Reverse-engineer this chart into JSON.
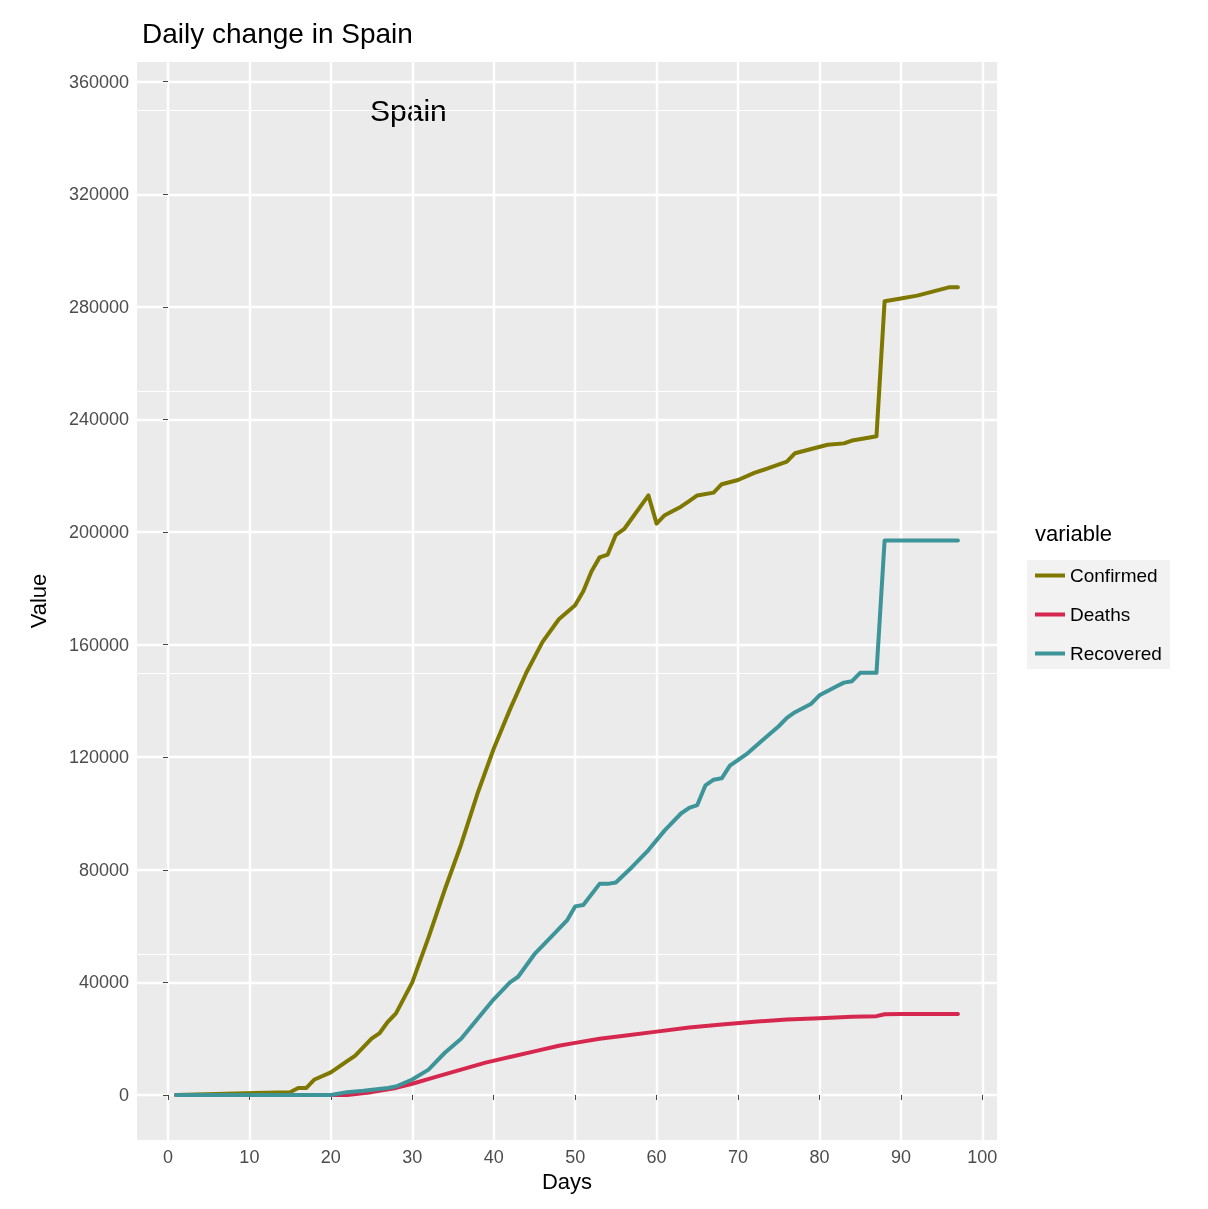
{
  "chart_data": {
    "type": "line",
    "title": "Daily change in Spain",
    "xlabel": "Days",
    "ylabel": "Value",
    "legend_title": "variable",
    "annotations": [
      "Spain"
    ],
    "xlim": [
      -3.8,
      101.8
    ],
    "xticks": [
      0,
      10,
      20,
      30,
      40,
      50,
      60,
      70,
      80,
      90,
      100
    ],
    "ylim": [
      -16000,
      367000
    ],
    "yticks": [
      0,
      40000,
      80000,
      120000,
      160000,
      200000,
      240000,
      280000,
      320000,
      360000
    ],
    "grid": true,
    "legend": "right",
    "marker": "none",
    "line_style": "solid",
    "series": [
      {
        "name": "Confirmed",
        "color": "#7f7800",
        "x": [
          1,
          15,
          16,
          17,
          18,
          20,
          22,
          23,
          25,
          26,
          27,
          28,
          30,
          32,
          34,
          36,
          38,
          40,
          42,
          44,
          46,
          48,
          50,
          51,
          52,
          53,
          54,
          55,
          56,
          57,
          59,
          60,
          61,
          63,
          64,
          65,
          67,
          68,
          70,
          72,
          74,
          76,
          77,
          79,
          81,
          83,
          84,
          86,
          87,
          88,
          90,
          92,
          94,
          96,
          97
        ],
        "values": [
          0,
          1000,
          2500,
          2500,
          5500,
          8000,
          12000,
          14000,
          20000,
          22000,
          26000,
          29000,
          40000,
          56000,
          73000,
          89000,
          107000,
          123000,
          137000,
          150000,
          161000,
          169000,
          174000,
          179000,
          186000,
          191000,
          192000,
          199000,
          201000,
          205000,
          213000,
          203000,
          206000,
          209000,
          211000,
          213000,
          214000,
          217000,
          218500,
          221000,
          223000,
          225000,
          228000,
          229500,
          231000,
          231500,
          232500,
          233500,
          234000,
          282000,
          283000,
          284000,
          285500,
          287000,
          287000
        ]
      },
      {
        "name": "Deaths",
        "color": "#d6284f",
        "x": [
          1,
          22,
          25,
          28,
          30,
          33,
          36,
          39,
          42,
          45,
          48,
          50,
          53,
          56,
          60,
          64,
          68,
          72,
          76,
          80,
          84,
          87,
          88,
          90,
          97
        ],
        "values": [
          0,
          0,
          1000,
          2500,
          4000,
          6500,
          9000,
          11500,
          13500,
          15500,
          17500,
          18500,
          20000,
          21000,
          22500,
          24000,
          25000,
          26000,
          26800,
          27300,
          27800,
          28000,
          28700,
          28800,
          28800
        ]
      },
      {
        "name": "Recovered",
        "color": "#3d9499",
        "x": [
          1,
          20,
          22,
          24,
          27,
          28,
          30,
          32,
          34,
          36,
          38,
          40,
          42,
          43,
          45,
          47,
          49,
          50,
          51,
          53,
          54,
          55,
          57,
          59,
          61,
          63,
          64,
          65,
          66,
          67,
          68,
          69,
          71,
          73,
          75,
          76,
          77,
          79,
          80,
          82,
          83,
          84,
          85,
          87,
          88,
          97
        ],
        "values": [
          0,
          0,
          1000,
          1500,
          2500,
          3000,
          5500,
          9000,
          15000,
          20000,
          27000,
          34000,
          40000,
          42000,
          50000,
          56000,
          62000,
          67000,
          67500,
          75000,
          75000,
          75500,
          81000,
          87000,
          94000,
          100000,
          102000,
          103000,
          110000,
          112000,
          112500,
          117000,
          121000,
          126000,
          131000,
          134000,
          136000,
          139000,
          142000,
          145000,
          146500,
          147000,
          150000,
          150000,
          197000,
          197000
        ]
      }
    ]
  }
}
